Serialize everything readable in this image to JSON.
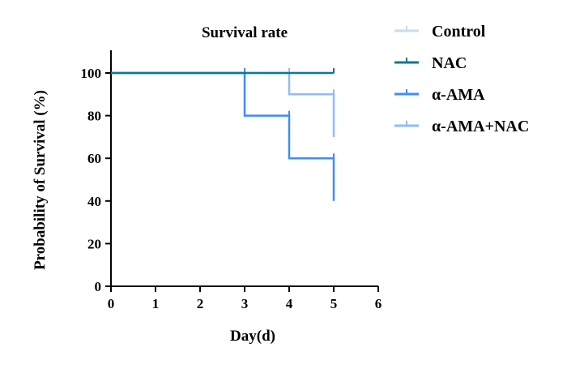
{
  "chart_data": {
    "type": "line",
    "step": true,
    "title": "Survival rate",
    "xlabel": "Day(d)",
    "ylabel": "Probability of Survival (%)",
    "xlim": [
      0,
      6
    ],
    "ylim": [
      0,
      100
    ],
    "xticks": [
      0,
      1,
      2,
      3,
      4,
      5,
      6
    ],
    "yticks": [
      0,
      20,
      40,
      60,
      80,
      100
    ],
    "grid": false,
    "legend_position": "right",
    "series": [
      {
        "name": "Control",
        "color": "#c6dcf5",
        "x": [
          0,
          5
        ],
        "y": [
          100,
          100
        ]
      },
      {
        "name": "NAC",
        "color": "#0e7a8a",
        "x": [
          0,
          5
        ],
        "y": [
          100,
          100
        ]
      },
      {
        "name": "α-AMA",
        "color": "#3d8ff5",
        "x": [
          0,
          3,
          4,
          5
        ],
        "y": [
          100,
          80,
          60,
          40
        ]
      },
      {
        "name": "α-AMA+NAC",
        "color": "#8fbdf5",
        "x": [
          0,
          4,
          5
        ],
        "y": [
          100,
          90,
          70
        ]
      }
    ]
  }
}
